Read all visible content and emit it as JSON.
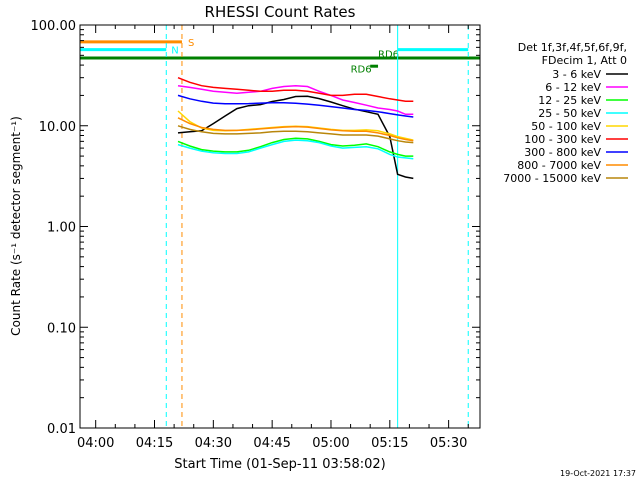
{
  "chart_data": {
    "type": "line",
    "title": "RHESSI Count Rates",
    "xlabel": "Start Time (01-Sep-11 03:58:02)",
    "ylabel": "Count Rate (s⁻¹ detector segment⁻¹)",
    "x_unit": "minutes of day",
    "x_range": [
      "03:56",
      "05:38"
    ],
    "ylim": [
      0.01,
      100
    ],
    "yscale": "log",
    "x_ticks": [
      "04:00",
      "04:15",
      "04:30",
      "04:45",
      "05:00",
      "05:15",
      "05:30"
    ],
    "x_tick_times": [
      "04:00",
      "04:15",
      "04:30",
      "04:45",
      "05:00",
      "05:15",
      "05:30"
    ],
    "y_ticks": [
      "0.01",
      "0.10",
      "1.00",
      "10.00",
      "100.00"
    ],
    "y_tick_values": [
      0.01,
      0.1,
      1,
      10,
      100
    ],
    "legend": {
      "header": [
        "Det 1f,3f,4f,5f,6f,9f,",
        "FDecim 1, Att 0"
      ],
      "placement": "right"
    },
    "series": [
      {
        "name": "3 - 6 keV",
        "color": "#000000",
        "x": [
          "04:21",
          "04:24",
          "04:27",
          "04:30",
          "04:33",
          "04:36",
          "04:39",
          "04:42",
          "04:45",
          "04:48",
          "04:51",
          "04:54",
          "04:57",
          "05:00",
          "05:03",
          "05:06",
          "05:09",
          "05:12",
          "05:15",
          "05:17",
          "05:19",
          "05:21"
        ],
        "values": [
          8.5,
          8.7,
          8.9,
          10.5,
          12.5,
          14.8,
          15.8,
          16.2,
          17.4,
          18.2,
          19.5,
          19.6,
          18.6,
          17.2,
          15.8,
          14.6,
          13.8,
          13.0,
          7.8,
          3.3,
          3.1,
          3.0
        ]
      },
      {
        "name": "6 - 12 keV",
        "color": "#ff00ff",
        "x": [
          "04:21",
          "04:24",
          "04:27",
          "04:30",
          "04:33",
          "04:36",
          "04:39",
          "04:42",
          "04:45",
          "04:48",
          "04:51",
          "04:54",
          "04:57",
          "05:00",
          "05:03",
          "05:06",
          "05:09",
          "05:12",
          "05:15",
          "05:17",
          "05:19",
          "05:21"
        ],
        "values": [
          25,
          24,
          23,
          22,
          21.5,
          21,
          21.5,
          22,
          23.5,
          24.5,
          25,
          24.5,
          22,
          20,
          18,
          17,
          16,
          15,
          14.5,
          14,
          13,
          13
        ]
      },
      {
        "name": "12 - 25 keV",
        "color": "#00ff00",
        "x": [
          "04:21",
          "04:24",
          "04:27",
          "04:30",
          "04:33",
          "04:36",
          "04:39",
          "04:42",
          "04:45",
          "04:48",
          "04:51",
          "04:54",
          "04:57",
          "05:00",
          "05:03",
          "05:06",
          "05:09",
          "05:12",
          "05:15",
          "05:17",
          "05:19",
          "05:21"
        ],
        "values": [
          7,
          6.3,
          5.8,
          5.6,
          5.5,
          5.5,
          5.7,
          6.2,
          6.8,
          7.3,
          7.5,
          7.4,
          7.0,
          6.5,
          6.3,
          6.4,
          6.6,
          6.2,
          5.5,
          5.2,
          5.0,
          5.0
        ]
      },
      {
        "name": "25 - 50 keV",
        "color": "#00ffff",
        "x": [
          "04:21",
          "04:24",
          "04:27",
          "04:30",
          "04:33",
          "04:36",
          "04:39",
          "04:42",
          "04:45",
          "04:48",
          "04:51",
          "04:54",
          "04:57",
          "05:00",
          "05:03",
          "05:06",
          "05:09",
          "05:12",
          "05:15",
          "05:17",
          "05:19",
          "05:21"
        ],
        "values": [
          6.5,
          6.0,
          5.6,
          5.4,
          5.3,
          5.3,
          5.5,
          6.0,
          6.5,
          7.0,
          7.2,
          7.1,
          6.8,
          6.3,
          6.0,
          6.1,
          6.2,
          5.9,
          5.2,
          4.9,
          4.8,
          4.7
        ]
      },
      {
        "name": "50 - 100 keV",
        "color": "#ffd700",
        "x": [
          "04:21",
          "04:24",
          "04:27",
          "04:30",
          "04:33",
          "04:36",
          "04:39",
          "04:42",
          "04:45",
          "04:48",
          "04:51",
          "04:54",
          "04:57",
          "05:00",
          "05:03",
          "05:06",
          "05:09",
          "05:12",
          "05:15",
          "05:17",
          "05:19",
          "05:21"
        ],
        "values": [
          14,
          11,
          9.5,
          9.0,
          8.9,
          9.0,
          9.2,
          9.4,
          9.6,
          9.8,
          9.9,
          9.8,
          9.5,
          9.2,
          9.0,
          9.0,
          9.1,
          8.9,
          8.3,
          7.8,
          7.5,
          7.2
        ]
      },
      {
        "name": "100 - 300 keV",
        "color": "#ff0000",
        "x": [
          "04:21",
          "04:24",
          "04:27",
          "04:30",
          "04:33",
          "04:36",
          "04:39",
          "04:42",
          "04:45",
          "04:48",
          "04:51",
          "04:54",
          "04:57",
          "05:00",
          "05:03",
          "05:06",
          "05:09",
          "05:12",
          "05:15",
          "05:17",
          "05:19",
          "05:21"
        ],
        "values": [
          30,
          27,
          25,
          24,
          23.5,
          23,
          22.5,
          22,
          22,
          22.5,
          22.5,
          22,
          21,
          20,
          20,
          20.5,
          20.5,
          19.5,
          18.5,
          18,
          17.5,
          17.5
        ]
      },
      {
        "name": "300 - 800 keV",
        "color": "#0000ff",
        "x": [
          "04:21",
          "04:24",
          "04:27",
          "04:30",
          "04:33",
          "04:36",
          "04:39",
          "04:42",
          "04:45",
          "04:48",
          "04:51",
          "04:54",
          "04:57",
          "05:00",
          "05:03",
          "05:06",
          "05:09",
          "05:12",
          "05:15",
          "05:17",
          "05:19",
          "05:21"
        ],
        "values": [
          20,
          18.5,
          17.5,
          16.8,
          16.5,
          16.5,
          16.6,
          16.8,
          16.9,
          16.9,
          16.7,
          16.4,
          16.0,
          15.5,
          15.0,
          14.5,
          14.2,
          13.8,
          13.2,
          12.8,
          12.5,
          12.2
        ]
      },
      {
        "name": "800 - 7000 keV",
        "color": "#ff8c00",
        "x": [
          "04:21",
          "04:24",
          "04:27",
          "04:30",
          "04:33",
          "04:36",
          "04:39",
          "04:42",
          "04:45",
          "04:48",
          "04:51",
          "04:54",
          "04:57",
          "05:00",
          "05:03",
          "05:06",
          "05:09",
          "05:12",
          "05:15",
          "05:17",
          "05:19",
          "05:21"
        ],
        "values": [
          12,
          10.5,
          9.6,
          9.2,
          9.0,
          9.0,
          9.1,
          9.3,
          9.5,
          9.7,
          9.8,
          9.7,
          9.4,
          9.1,
          8.9,
          8.8,
          8.8,
          8.5,
          8.0,
          7.6,
          7.3,
          7.1
        ]
      },
      {
        "name": "7000 - 15000 keV",
        "color": "#b8860b",
        "x": [
          "04:21",
          "04:24",
          "04:27",
          "04:30",
          "04:33",
          "04:36",
          "04:39",
          "04:42",
          "04:45",
          "04:48",
          "04:51",
          "04:54",
          "04:57",
          "05:00",
          "05:03",
          "05:06",
          "05:09",
          "05:12",
          "05:15",
          "05:17",
          "05:19",
          "05:21"
        ],
        "values": [
          10,
          9.2,
          8.7,
          8.4,
          8.3,
          8.3,
          8.4,
          8.5,
          8.7,
          8.8,
          8.8,
          8.7,
          8.5,
          8.3,
          8.1,
          8.1,
          8.1,
          7.9,
          7.4,
          7.1,
          6.9,
          6.8
        ]
      }
    ],
    "annotations": [
      {
        "label": "S",
        "color": "#ff8c00"
      },
      {
        "label": "N",
        "color": "#00ffff"
      },
      {
        "label": "RD6",
        "color": "#008000"
      },
      {
        "label": "RD6",
        "color": "#008000"
      }
    ]
  },
  "footer": {
    "timestamp": "19-Oct-2021 17:37"
  }
}
